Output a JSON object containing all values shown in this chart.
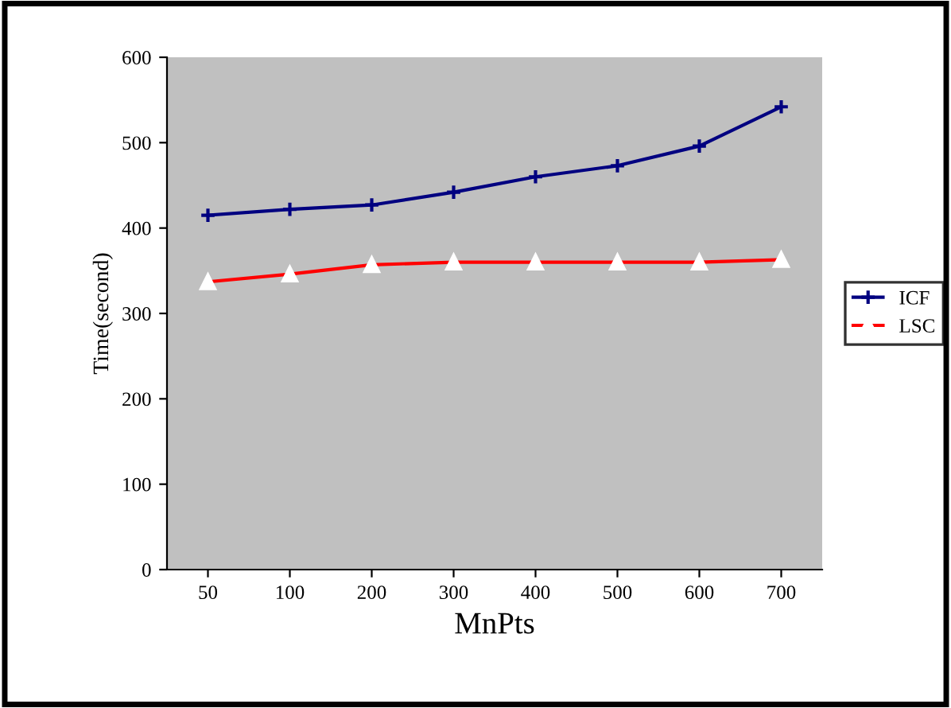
{
  "chart_data": {
    "type": "line",
    "xlabel": "MnPts",
    "ylabel": "Time(second)",
    "categories": [
      "50",
      "100",
      "200",
      "300",
      "400",
      "500",
      "600",
      "700"
    ],
    "series": [
      {
        "name": "ICF",
        "color": "#000080",
        "marker": "cross",
        "values": [
          415,
          422,
          427,
          442,
          460,
          473,
          496,
          542
        ]
      },
      {
        "name": "LSC",
        "color": "#ff0000",
        "marker": "triangle",
        "values": [
          337,
          346,
          357,
          360,
          360,
          360,
          360,
          363
        ]
      }
    ],
    "ylim": [
      0,
      600
    ],
    "yticks": [
      0,
      100,
      200,
      300,
      400,
      500,
      600
    ],
    "grid": false,
    "legend": "right",
    "line_style": "solid"
  }
}
